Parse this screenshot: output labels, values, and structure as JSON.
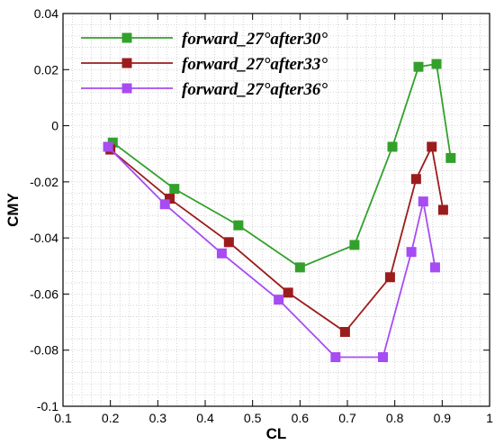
{
  "chart_data": {
    "type": "line",
    "xlabel": "CL",
    "ylabel": "CMY",
    "xlim": [
      0.1,
      1
    ],
    "ylim": [
      -0.1,
      0.04
    ],
    "xticks": [
      "0.1",
      "0.2",
      "0.3",
      "0.4",
      "0.5",
      "0.6",
      "0.7",
      "0.8",
      "0.9",
      "1"
    ],
    "yticks": [
      "-0.1",
      "-0.08",
      "-0.06",
      "-0.04",
      "-0.02",
      "0",
      "0.02",
      "0.04"
    ],
    "grid": true,
    "legend_position": "top-left",
    "series": [
      {
        "name": "forward_27°after30°",
        "color": "#33a02c",
        "x": [
          0.205,
          0.335,
          0.47,
          0.6,
          0.715,
          0.795,
          0.85,
          0.888,
          0.918
        ],
        "y": [
          -0.006,
          -0.0225,
          -0.0355,
          -0.0505,
          -0.0425,
          -0.0075,
          0.021,
          0.022,
          -0.0115
        ]
      },
      {
        "name": "forward_27°after33°",
        "color": "#9b1c1c",
        "x": [
          0.2,
          0.325,
          0.45,
          0.575,
          0.695,
          0.79,
          0.845,
          0.878,
          0.902
        ],
        "y": [
          -0.0085,
          -0.026,
          -0.0415,
          -0.0595,
          -0.0735,
          -0.054,
          -0.019,
          -0.0075,
          -0.03
        ]
      },
      {
        "name": "forward_27°after36°",
        "color": "#a64cf2",
        "x": [
          0.195,
          0.315,
          0.435,
          0.555,
          0.675,
          0.775,
          0.835,
          0.86,
          0.885
        ],
        "y": [
          -0.0075,
          -0.028,
          -0.0455,
          -0.062,
          -0.0825,
          -0.0825,
          -0.045,
          -0.027,
          -0.0505
        ]
      }
    ]
  }
}
